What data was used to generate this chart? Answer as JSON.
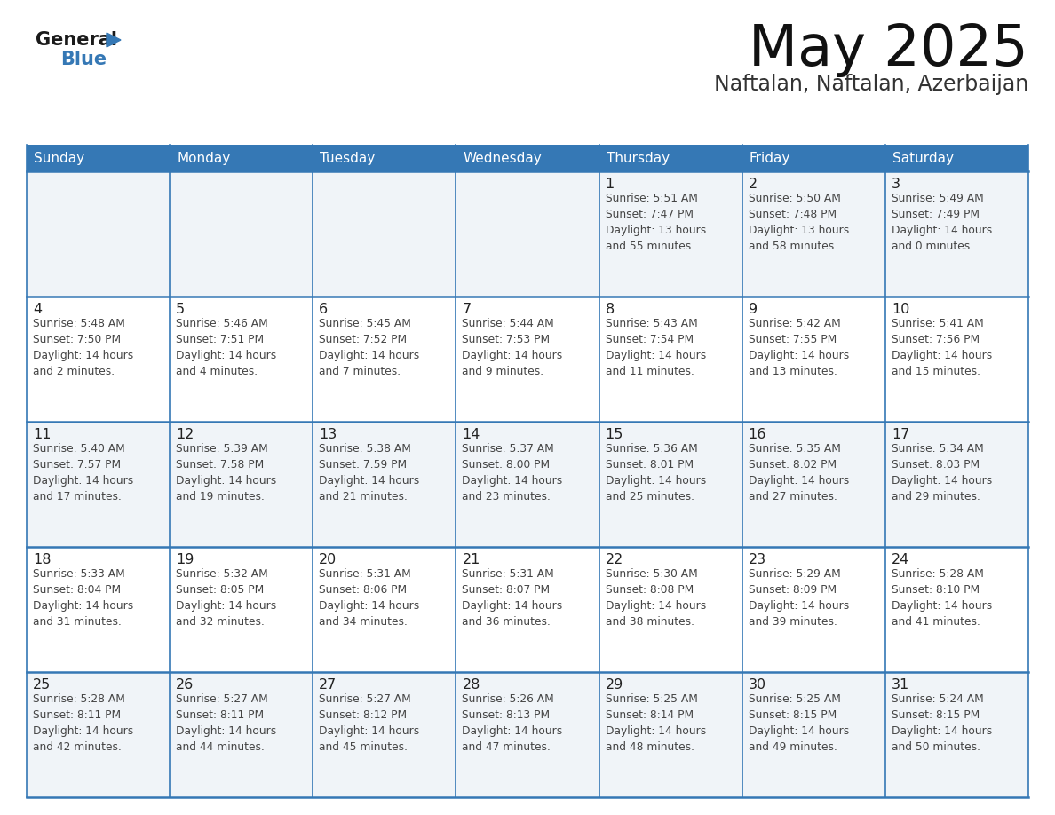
{
  "title": "May 2025",
  "subtitle": "Naftalan, Naftalan, Azerbaijan",
  "header_color": "#3578b5",
  "header_text_color": "#ffffff",
  "cell_bg_even": "#f0f4f8",
  "cell_bg_odd": "#ffffff",
  "grid_line_color": "#3578b5",
  "text_color_day": "#222222",
  "text_color_info": "#444444",
  "days_of_week": [
    "Sunday",
    "Monday",
    "Tuesday",
    "Wednesday",
    "Thursday",
    "Friday",
    "Saturday"
  ],
  "weeks": [
    [
      {
        "day": "",
        "info": ""
      },
      {
        "day": "",
        "info": ""
      },
      {
        "day": "",
        "info": ""
      },
      {
        "day": "",
        "info": ""
      },
      {
        "day": "1",
        "info": "Sunrise: 5:51 AM\nSunset: 7:47 PM\nDaylight: 13 hours\nand 55 minutes."
      },
      {
        "day": "2",
        "info": "Sunrise: 5:50 AM\nSunset: 7:48 PM\nDaylight: 13 hours\nand 58 minutes."
      },
      {
        "day": "3",
        "info": "Sunrise: 5:49 AM\nSunset: 7:49 PM\nDaylight: 14 hours\nand 0 minutes."
      }
    ],
    [
      {
        "day": "4",
        "info": "Sunrise: 5:48 AM\nSunset: 7:50 PM\nDaylight: 14 hours\nand 2 minutes."
      },
      {
        "day": "5",
        "info": "Sunrise: 5:46 AM\nSunset: 7:51 PM\nDaylight: 14 hours\nand 4 minutes."
      },
      {
        "day": "6",
        "info": "Sunrise: 5:45 AM\nSunset: 7:52 PM\nDaylight: 14 hours\nand 7 minutes."
      },
      {
        "day": "7",
        "info": "Sunrise: 5:44 AM\nSunset: 7:53 PM\nDaylight: 14 hours\nand 9 minutes."
      },
      {
        "day": "8",
        "info": "Sunrise: 5:43 AM\nSunset: 7:54 PM\nDaylight: 14 hours\nand 11 minutes."
      },
      {
        "day": "9",
        "info": "Sunrise: 5:42 AM\nSunset: 7:55 PM\nDaylight: 14 hours\nand 13 minutes."
      },
      {
        "day": "10",
        "info": "Sunrise: 5:41 AM\nSunset: 7:56 PM\nDaylight: 14 hours\nand 15 minutes."
      }
    ],
    [
      {
        "day": "11",
        "info": "Sunrise: 5:40 AM\nSunset: 7:57 PM\nDaylight: 14 hours\nand 17 minutes."
      },
      {
        "day": "12",
        "info": "Sunrise: 5:39 AM\nSunset: 7:58 PM\nDaylight: 14 hours\nand 19 minutes."
      },
      {
        "day": "13",
        "info": "Sunrise: 5:38 AM\nSunset: 7:59 PM\nDaylight: 14 hours\nand 21 minutes."
      },
      {
        "day": "14",
        "info": "Sunrise: 5:37 AM\nSunset: 8:00 PM\nDaylight: 14 hours\nand 23 minutes."
      },
      {
        "day": "15",
        "info": "Sunrise: 5:36 AM\nSunset: 8:01 PM\nDaylight: 14 hours\nand 25 minutes."
      },
      {
        "day": "16",
        "info": "Sunrise: 5:35 AM\nSunset: 8:02 PM\nDaylight: 14 hours\nand 27 minutes."
      },
      {
        "day": "17",
        "info": "Sunrise: 5:34 AM\nSunset: 8:03 PM\nDaylight: 14 hours\nand 29 minutes."
      }
    ],
    [
      {
        "day": "18",
        "info": "Sunrise: 5:33 AM\nSunset: 8:04 PM\nDaylight: 14 hours\nand 31 minutes."
      },
      {
        "day": "19",
        "info": "Sunrise: 5:32 AM\nSunset: 8:05 PM\nDaylight: 14 hours\nand 32 minutes."
      },
      {
        "day": "20",
        "info": "Sunrise: 5:31 AM\nSunset: 8:06 PM\nDaylight: 14 hours\nand 34 minutes."
      },
      {
        "day": "21",
        "info": "Sunrise: 5:31 AM\nSunset: 8:07 PM\nDaylight: 14 hours\nand 36 minutes."
      },
      {
        "day": "22",
        "info": "Sunrise: 5:30 AM\nSunset: 8:08 PM\nDaylight: 14 hours\nand 38 minutes."
      },
      {
        "day": "23",
        "info": "Sunrise: 5:29 AM\nSunset: 8:09 PM\nDaylight: 14 hours\nand 39 minutes."
      },
      {
        "day": "24",
        "info": "Sunrise: 5:28 AM\nSunset: 8:10 PM\nDaylight: 14 hours\nand 41 minutes."
      }
    ],
    [
      {
        "day": "25",
        "info": "Sunrise: 5:28 AM\nSunset: 8:11 PM\nDaylight: 14 hours\nand 42 minutes."
      },
      {
        "day": "26",
        "info": "Sunrise: 5:27 AM\nSunset: 8:11 PM\nDaylight: 14 hours\nand 44 minutes."
      },
      {
        "day": "27",
        "info": "Sunrise: 5:27 AM\nSunset: 8:12 PM\nDaylight: 14 hours\nand 45 minutes."
      },
      {
        "day": "28",
        "info": "Sunrise: 5:26 AM\nSunset: 8:13 PM\nDaylight: 14 hours\nand 47 minutes."
      },
      {
        "day": "29",
        "info": "Sunrise: 5:25 AM\nSunset: 8:14 PM\nDaylight: 14 hours\nand 48 minutes."
      },
      {
        "day": "30",
        "info": "Sunrise: 5:25 AM\nSunset: 8:15 PM\nDaylight: 14 hours\nand 49 minutes."
      },
      {
        "day": "31",
        "info": "Sunrise: 5:24 AM\nSunset: 8:15 PM\nDaylight: 14 hours\nand 50 minutes."
      }
    ]
  ]
}
